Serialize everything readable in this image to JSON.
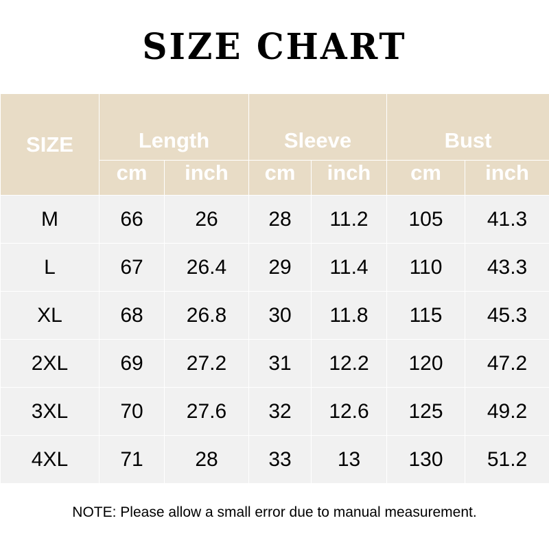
{
  "title": "SIZE CHART",
  "header": {
    "size": "SIZE",
    "groups": [
      "Length",
      "Sleeve",
      "Bust"
    ],
    "units": [
      "cm",
      "inch",
      "cm",
      "inch",
      "cm",
      "inch"
    ]
  },
  "rows": [
    [
      "M",
      "66",
      "26",
      "28",
      "11.2",
      "105",
      "41.3"
    ],
    [
      "L",
      "67",
      "26.4",
      "29",
      "11.4",
      "110",
      "43.3"
    ],
    [
      "XL",
      "68",
      "26.8",
      "30",
      "11.8",
      "115",
      "45.3"
    ],
    [
      "2XL",
      "69",
      "27.2",
      "31",
      "12.2",
      "120",
      "47.2"
    ],
    [
      "3XL",
      "70",
      "27.6",
      "32",
      "12.6",
      "125",
      "49.2"
    ],
    [
      "4XL",
      "71",
      "28",
      "33",
      "13",
      "130",
      "51.2"
    ]
  ],
  "note": "NOTE: Please allow a small error due to manual measurement.",
  "colors": {
    "header_bg": "#e8dcc6",
    "row_bg": "#f1f1f1"
  }
}
